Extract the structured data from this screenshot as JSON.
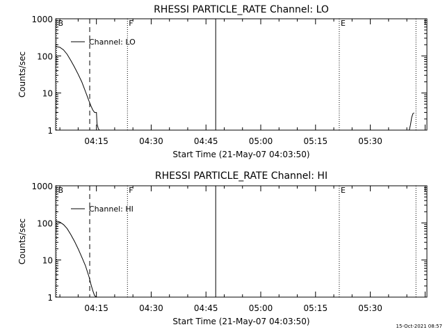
{
  "chart_data": [
    {
      "type": "line",
      "title": "RHESSI PARTICLE_RATE Channel: LO",
      "xlabel": "Start Time (21-May-07 04:03:50)",
      "ylabel": "Counts/sec",
      "xlim": [
        "04:03:50",
        "05:45:30"
      ],
      "ylim": [
        1,
        1000
      ],
      "yscale": "log",
      "x_ticks": [
        "04:15",
        "04:30",
        "04:45",
        "05:00",
        "05:15",
        "05:30"
      ],
      "y_ticks": [
        "1",
        "10",
        "100",
        "1000"
      ],
      "legend": {
        "position": "top-left",
        "entries": [
          "Channel: LO"
        ]
      },
      "series": [
        {
          "name": "Channel: LO",
          "segments": [
            {
              "x": [
                "04:03:50",
                "04:05:00",
                "04:06:00",
                "04:07:00",
                "04:08:00",
                "04:09:00",
                "04:10:00",
                "04:11:00",
                "04:12:00",
                "04:13:00",
                "04:13:30",
                "04:14:00",
                "04:14:30",
                "04:15:00",
                "04:15:10",
                "04:15:30",
                "04:15:50"
              ],
              "y": [
                180,
                170,
                145,
                110,
                75,
                50,
                32,
                20,
                11,
                6,
                4.5,
                3.5,
                3.0,
                3.0,
                1.5,
                1.1,
                1.0
              ]
            },
            {
              "x": [
                "05:40:40",
                "05:41:00",
                "05:41:20",
                "05:41:40",
                "05:42:00"
              ],
              "y": [
                1.0,
                1.4,
                2.2,
                2.8,
                2.9
              ]
            }
          ]
        }
      ],
      "markers": [
        {
          "label": "B",
          "x": "04:03:50",
          "style": "dotted"
        },
        {
          "label": "",
          "x": "04:13:10",
          "style": "dashed"
        },
        {
          "label": "F",
          "x": "04:23:30",
          "style": "dotted"
        },
        {
          "label": "",
          "x": "04:47:40",
          "style": "solid"
        },
        {
          "label": "E",
          "x": "05:21:30",
          "style": "dotted"
        },
        {
          "label": "",
          "x": "05:42:30",
          "style": "dotted"
        }
      ]
    },
    {
      "type": "line",
      "title": "RHESSI PARTICLE_RATE Channel: HI",
      "xlabel": "Start Time (21-May-07 04:03:50)",
      "ylabel": "Counts/sec",
      "xlim": [
        "04:03:50",
        "05:45:30"
      ],
      "ylim": [
        1,
        1000
      ],
      "yscale": "log",
      "x_ticks": [
        "04:15",
        "04:30",
        "04:45",
        "05:00",
        "05:15",
        "05:30"
      ],
      "y_ticks": [
        "1",
        "10",
        "100",
        "1000"
      ],
      "legend": {
        "position": "top-left",
        "entries": [
          "Channel: HI"
        ]
      },
      "series": [
        {
          "name": "Channel: HI",
          "segments": [
            {
              "x": [
                "04:03:50",
                "04:05:00",
                "04:06:00",
                "04:07:00",
                "04:08:00",
                "04:09:00",
                "04:10:00",
                "04:11:00",
                "04:12:00",
                "04:13:00",
                "04:13:30",
                "04:14:00",
                "04:14:30",
                "04:15:00"
              ],
              "y": [
                115,
                105,
                90,
                70,
                48,
                32,
                20,
                12,
                7,
                3.5,
                2.2,
                1.5,
                1.1,
                1.0
              ]
            }
          ]
        }
      ],
      "markers": [
        {
          "label": "B",
          "x": "04:03:50",
          "style": "dotted"
        },
        {
          "label": "",
          "x": "04:13:10",
          "style": "dashed"
        },
        {
          "label": "F",
          "x": "04:23:30",
          "style": "dotted"
        },
        {
          "label": "",
          "x": "04:47:40",
          "style": "solid"
        },
        {
          "label": "E",
          "x": "05:21:30",
          "style": "dotted"
        },
        {
          "label": "",
          "x": "05:42:30",
          "style": "dotted"
        }
      ]
    }
  ],
  "footer": {
    "stamp": "15-Oct-2021 08:57"
  },
  "colors": {
    "background": "#ffffff",
    "ink": "#000000"
  }
}
